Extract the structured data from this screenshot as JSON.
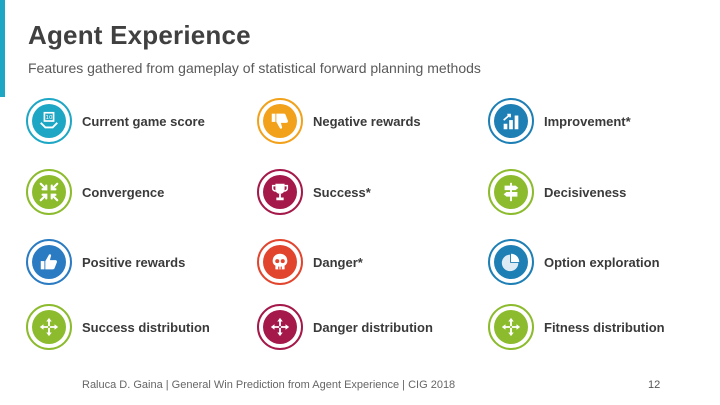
{
  "slide": {
    "title": "Agent Experience",
    "subtitle": "Features gathered from gameplay of statistical forward planning methods",
    "footer": "Raluca D. Gaina | General Win Prediction from Agent Experience | CIG 2018",
    "page_number": "12",
    "accent_color": "#1ea7c5"
  },
  "features": [
    {
      "label": "Current game score",
      "icon": "score-hands-icon",
      "color": "#1ea7c5"
    },
    {
      "label": "Convergence",
      "icon": "convergence-arrows-icon",
      "color": "#8cbb2e"
    },
    {
      "label": "Positive rewards",
      "icon": "thumbs-up-icon",
      "color": "#2b7bc2"
    },
    {
      "label": "Success distribution",
      "icon": "distribution-arrows-icon",
      "color": "#8cbb2e"
    },
    {
      "label": "Negative rewards",
      "icon": "thumbs-down-icon",
      "color": "#f2a11a"
    },
    {
      "label": "Success*",
      "icon": "trophy-icon",
      "color": "#a5184a"
    },
    {
      "label": "Danger*",
      "icon": "skull-icon",
      "color": "#e2452e"
    },
    {
      "label": "Danger distribution",
      "icon": "distribution-arrows-icon",
      "color": "#a5184a"
    },
    {
      "label": "Improvement*",
      "icon": "bar-chart-icon",
      "color": "#1e7fb5"
    },
    {
      "label": "Decisiveness",
      "icon": "signpost-icon",
      "color": "#8cbb2e"
    },
    {
      "label": "Option exploration",
      "icon": "pie-chart-icon",
      "color": "#1e7fb5"
    },
    {
      "label": "Fitness distribution",
      "icon": "distribution-arrows-icon",
      "color": "#8cbb2e"
    }
  ]
}
